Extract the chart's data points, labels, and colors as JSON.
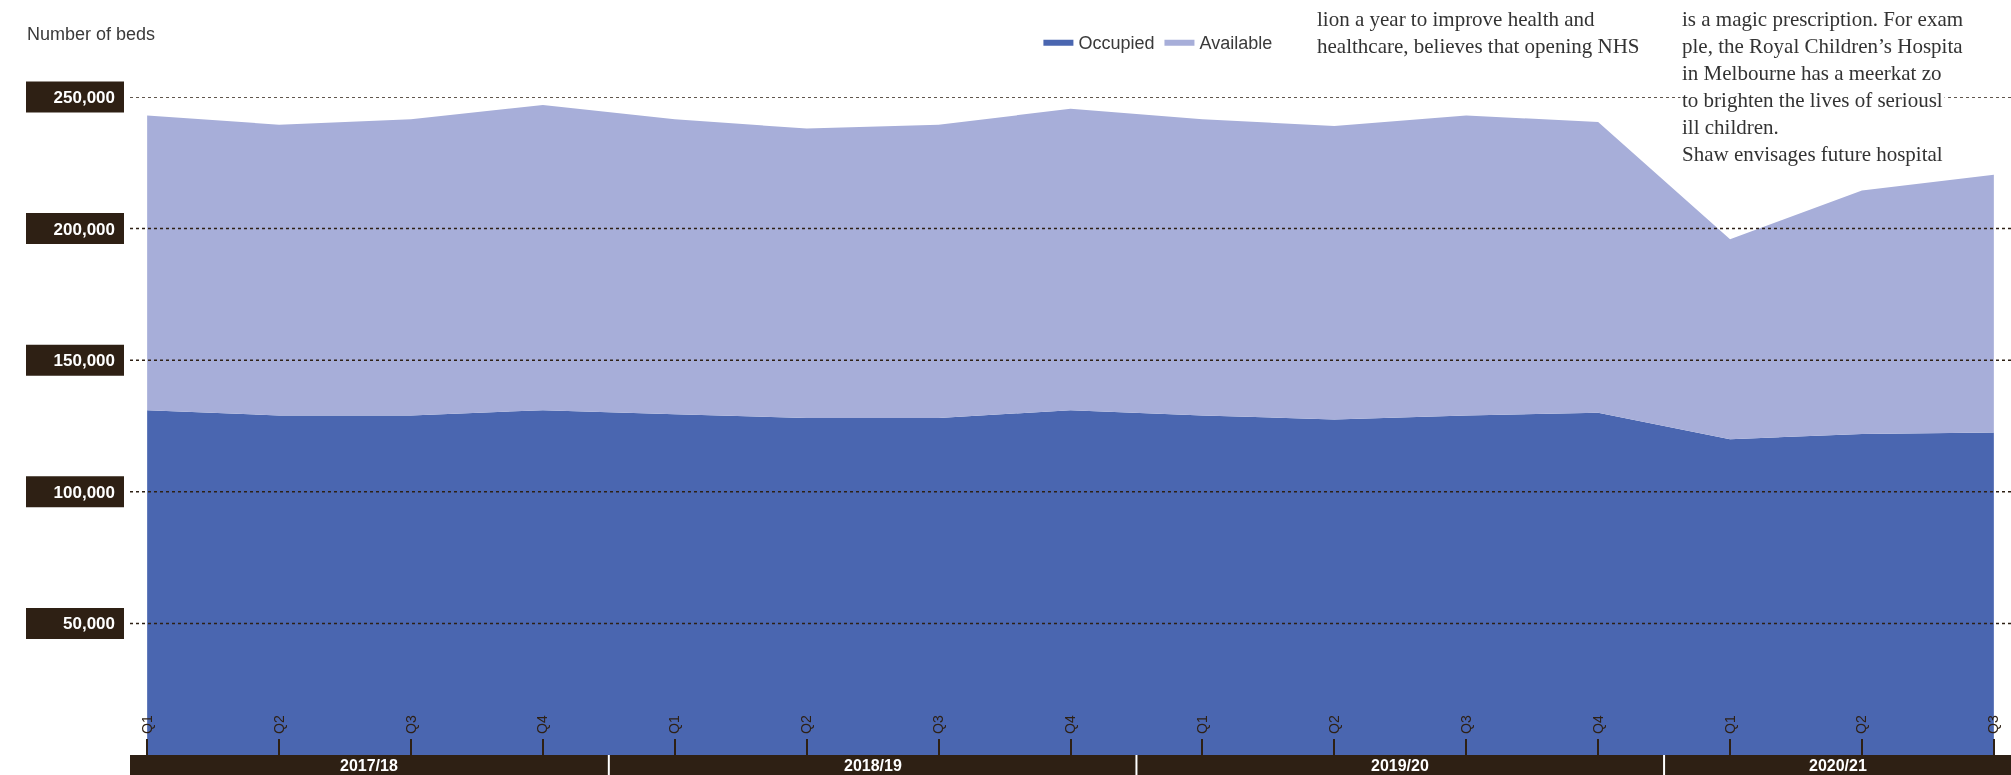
{
  "chart_data": {
    "type": "area",
    "stacked": true,
    "ylabel": "Number of beds",
    "categories": [
      "Q1",
      "Q2",
      "Q3",
      "Q4",
      "Q1",
      "Q2",
      "Q3",
      "Q4",
      "Q1",
      "Q2",
      "Q3",
      "Q4",
      "Q1",
      "Q2",
      "Q3"
    ],
    "series": [
      {
        "name": "Occupied",
        "color": "#4a66b0",
        "values": [
          131000,
          129000,
          129000,
          131000,
          129500,
          128000,
          128000,
          131000,
          129000,
          127500,
          129000,
          130000,
          120000,
          122000,
          122500
        ]
      },
      {
        "name": "Available",
        "color": "#a7aed9",
        "values": [
          112000,
          110500,
          112500,
          116000,
          112000,
          110000,
          111500,
          114500,
          112500,
          111500,
          114000,
          110500,
          76000,
          92500,
          98000
        ]
      }
    ],
    "ylim": [
      0,
      250000
    ],
    "yticks": [
      {
        "value": 50000,
        "label": "50,000"
      },
      {
        "value": 100000,
        "label": "100,000"
      },
      {
        "value": 150000,
        "label": "150,000"
      },
      {
        "value": 200000,
        "label": "200,000"
      },
      {
        "value": 250000,
        "label": "250,000"
      }
    ],
    "grid": "y",
    "legend": "top right",
    "annotations": [
      "2017/18",
      "2018/19",
      "2019/20",
      "2020/21",
      "lion a year to improve health and",
      "healthcare, believes that opening NHS",
      "is a magic prescription. For exam",
      "ple, the Royal Children’s Hospita",
      "in Melbourne has a meerkat zo",
      "to brighten the lives of seriousl",
      "ill children.",
      "Shaw envisages future hospital"
    ]
  }
}
